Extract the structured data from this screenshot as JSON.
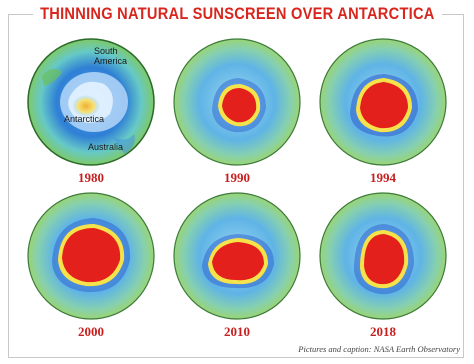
{
  "title": "THINNING NATURAL SUNSCREEN OVER ANTARCTICA",
  "map_labels": {
    "south_america": "South\nAmerica",
    "antarctica": "Antarctica",
    "australia": "Australia"
  },
  "panels": [
    {
      "year": "1980",
      "hole": "faint",
      "core_color": "#f0b030"
    },
    {
      "year": "1990",
      "hole": "medium",
      "core_color": "#e3201b"
    },
    {
      "year": "1994",
      "hole": "large",
      "core_color": "#e3201b"
    },
    {
      "year": "2000",
      "hole": "large",
      "core_color": "#e3201b"
    },
    {
      "year": "2010",
      "hole": "large",
      "core_color": "#e3201b"
    },
    {
      "year": "2018",
      "hole": "large",
      "core_color": "#e3201b"
    }
  ],
  "credit": "Pictures and caption: NASA Earth Observatory",
  "colors": {
    "title": "#d8261e",
    "year": "#c81e1e"
  }
}
